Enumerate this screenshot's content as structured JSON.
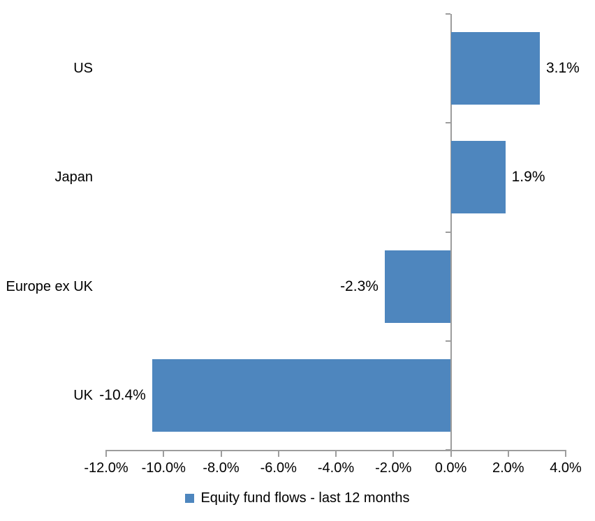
{
  "chart_data": {
    "type": "bar",
    "orientation": "horizontal",
    "title": "",
    "categories": [
      "US",
      "Japan",
      "Europe ex UK",
      "UK"
    ],
    "series": [
      {
        "name": "Equity fund flows - last 12 months",
        "values": [
          3.1,
          1.9,
          -2.3,
          -10.4
        ]
      }
    ],
    "data_labels": [
      "3.1%",
      "1.9%",
      "-2.3%",
      "-10.4%"
    ],
    "xlabel": "",
    "ylabel": "",
    "xlim": [
      -12,
      4
    ],
    "x_tick_step": 2,
    "x_tick_labels": [
      "-12.0%",
      "-10.0%",
      "-8.0%",
      "-6.0%",
      "-4.0%",
      "-2.0%",
      "0.0%",
      "2.0%",
      "4.0%"
    ],
    "grid": false,
    "legend": {
      "position": "bottom",
      "label": "Equity fund flows - last 12 months"
    },
    "colors": {
      "bar": "#4E86BE",
      "axis": "#9D9D9D",
      "text": "#000000",
      "background": "#FFFFFF"
    }
  }
}
